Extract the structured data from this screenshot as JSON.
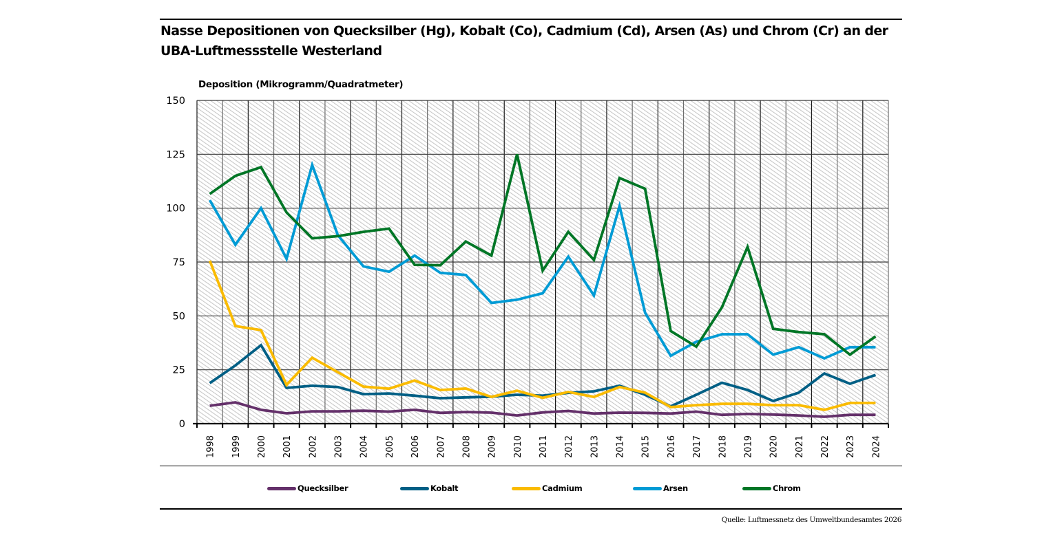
{
  "header": {
    "title_line1": "Nasse Depositionen von Quecksilber (Hg), Kobalt (Co), Cadmium (Cd), Arsen (As) und Chrom (Cr) an der",
    "title_line2": "UBA-Luftmessstelle Westerland"
  },
  "footer": {
    "source": "Quelle: Luftmessnetz des Umweltbundesamtes 2026"
  },
  "chart_data": {
    "type": "line",
    "title": "Nasse Depositionen von Quecksilber (Hg), Kobalt (Co), Cadmium (Cd), Arsen (As) und Chrom (Cr) an der UBA-Luftmessstelle Westerland",
    "xlabel": "",
    "ylabel": "Deposition (Mikrogramm/Quadratmeter)",
    "ylim": [
      0,
      150
    ],
    "yticks": [
      0,
      25,
      50,
      75,
      100,
      125,
      150
    ],
    "grid": true,
    "background": "hatched",
    "legend_position": "bottom",
    "x": [
      "1998",
      "1999",
      "2000",
      "2001",
      "2002",
      "2003",
      "2004",
      "2005",
      "2006",
      "2007",
      "2008",
      "2009",
      "2010",
      "2011",
      "2012",
      "2013",
      "2014",
      "2015",
      "2016",
      "2017",
      "2018",
      "2019",
      "2020",
      "2021",
      "2022",
      "2023",
      "2024"
    ],
    "series": [
      {
        "name": "Quecksilber",
        "color": "#64306a",
        "values": [
          8.3,
          9.9,
          6.4,
          4.8,
          5.7,
          5.7,
          6.0,
          5.6,
          6.4,
          5.0,
          5.4,
          5.1,
          3.8,
          5.2,
          5.9,
          4.7,
          5.1,
          5.0,
          4.7,
          5.6,
          4.1,
          4.5,
          4.2,
          3.8,
          3.2,
          4.1,
          4.1
        ]
      },
      {
        "name": "Kobalt",
        "color": "#005f85",
        "values": [
          18.8,
          27.0,
          36.4,
          16.6,
          17.6,
          17.0,
          13.7,
          14.0,
          13.0,
          11.8,
          12.2,
          12.5,
          13.4,
          13.0,
          14.3,
          15.0,
          17.6,
          13.4,
          8.0,
          13.4,
          19.0,
          15.6,
          10.5,
          14.4,
          23.3,
          18.5,
          22.6
        ]
      },
      {
        "name": "Cadmium",
        "color": "#fabb00",
        "values": [
          75.6,
          45.3,
          43.4,
          18.0,
          30.6,
          23.9,
          17.2,
          16.2,
          20.0,
          15.6,
          16.3,
          12.4,
          15.3,
          12.0,
          14.7,
          12.4,
          17.0,
          14.4,
          7.7,
          8.6,
          9.2,
          9.2,
          8.6,
          8.6,
          6.4,
          9.6,
          9.6
        ]
      },
      {
        "name": "Arsen",
        "color": "#009bd5",
        "values": [
          103.7,
          83.0,
          100.0,
          76.5,
          120.0,
          87.5,
          73.0,
          70.5,
          78.0,
          70.0,
          69.0,
          56.0,
          57.5,
          60.5,
          77.5,
          59.5,
          101.0,
          51.5,
          31.5,
          38.0,
          41.5,
          41.5,
          32.0,
          35.5,
          30.3,
          35.5,
          35.5
        ]
      },
      {
        "name": "Chrom",
        "color": "#007626",
        "values": [
          106.6,
          115.0,
          119.0,
          98.0,
          86.0,
          87.0,
          89.0,
          90.5,
          73.7,
          73.5,
          84.5,
          78.0,
          125.0,
          71.0,
          89.0,
          76.0,
          114.0,
          109.0,
          43.0,
          35.7,
          54.0,
          82.0,
          44.0,
          42.5,
          41.5,
          32.0,
          40.5
        ]
      }
    ]
  }
}
